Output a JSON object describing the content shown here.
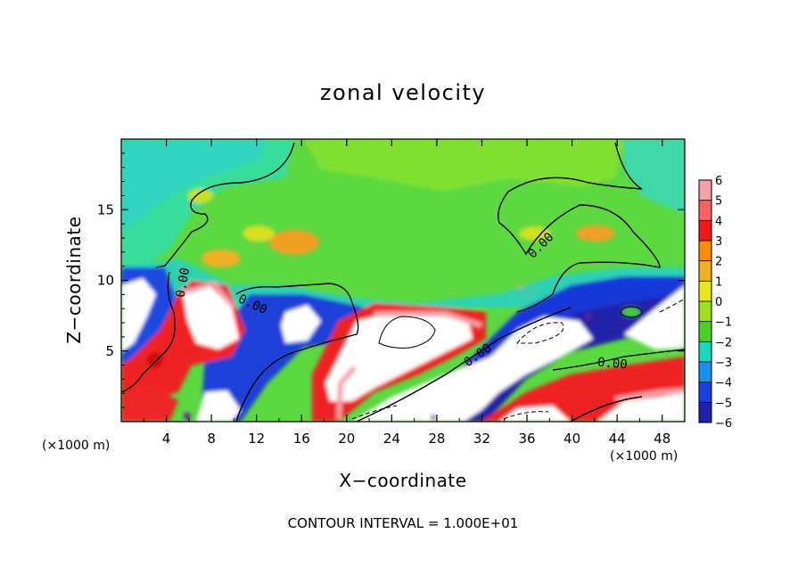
{
  "chart_data": {
    "type": "heatmap",
    "title": "zonal velocity",
    "xlabel": "X−coordinate",
    "ylabel": "Z−coordinate",
    "x_unit_left": "(×1000 m)",
    "x_unit_right": "(×1000 m)",
    "footer": "CONTOUR INTERVAL = 1.000E+01",
    "xlim": [
      0,
      50
    ],
    "ylim": [
      0,
      20
    ],
    "x_ticks": [
      4,
      8,
      12,
      16,
      20,
      24,
      28,
      32,
      36,
      40,
      44,
      48
    ],
    "x_tick_labels": [
      "4",
      "8",
      "12",
      "16",
      "20",
      "24",
      "28",
      "32",
      "36",
      "40",
      "44",
      "48"
    ],
    "y_ticks": [
      5,
      10,
      15
    ],
    "y_tick_labels": [
      "5",
      "10",
      "15"
    ],
    "colorbar": {
      "levels": [
        6,
        5,
        4,
        3,
        2,
        1,
        0,
        -1,
        -2,
        -3,
        -4,
        -5,
        -6
      ],
      "labels": [
        "6",
        "5",
        "4",
        "3",
        "2",
        "1",
        "0",
        "−1",
        "−2",
        "−3",
        "−4",
        "−5",
        "−6"
      ],
      "colors": [
        "#f4a0a8",
        "#ff6060",
        "#f01818",
        "#ff8c00",
        "#f0b020",
        "#e8e820",
        "#a0e018",
        "#48d028",
        "#18d8c0",
        "#1890f0",
        "#1840e0",
        "#2020a8",
        "#7818a8"
      ],
      "below_min_color": "#7818a8",
      "above_max_color": "#ffffff"
    },
    "contour_labels": [
      "0.00",
      "0.00",
      "0.00",
      "0.00",
      "0.00"
    ]
  }
}
